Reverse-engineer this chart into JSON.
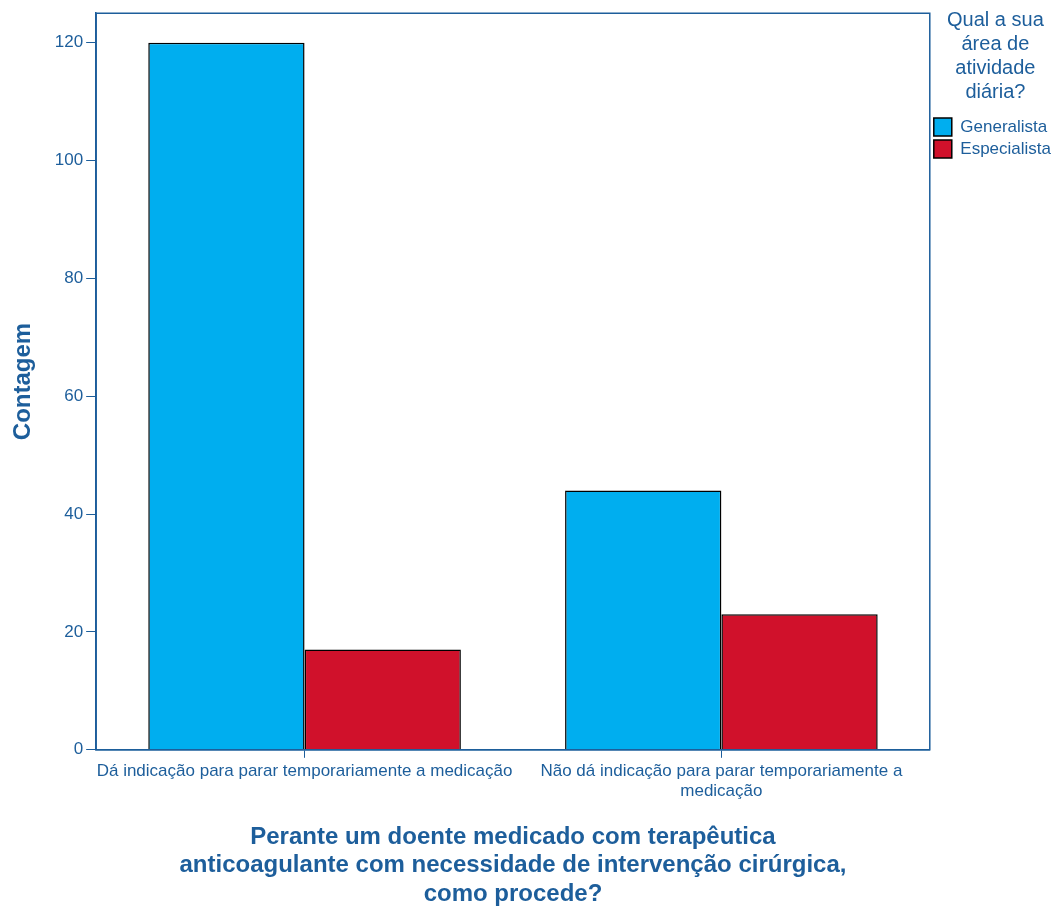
{
  "chart_data": {
    "type": "bar",
    "xlabel": "Perante um doente medicado com terapêutica anticoagulante com necessidade de intervenção cirúrgica, como procede?",
    "ylabel": "Contagem",
    "legend_title": "Qual a sua área de atividade diária?",
    "categories": [
      "Dá indicação para parar temporariamente a medicação",
      "Não dá indicação para parar temporariamente a medicação"
    ],
    "series": [
      {
        "name": "Generalista",
        "color": "#00aeef",
        "values": [
          120,
          44
        ]
      },
      {
        "name": "Especialista",
        "color": "#d0112b",
        "values": [
          17,
          23
        ]
      }
    ],
    "ylim": [
      0,
      125
    ],
    "yticks": [
      0,
      20,
      40,
      60,
      80,
      100,
      120
    ],
    "grid": false,
    "legend": "top right"
  }
}
